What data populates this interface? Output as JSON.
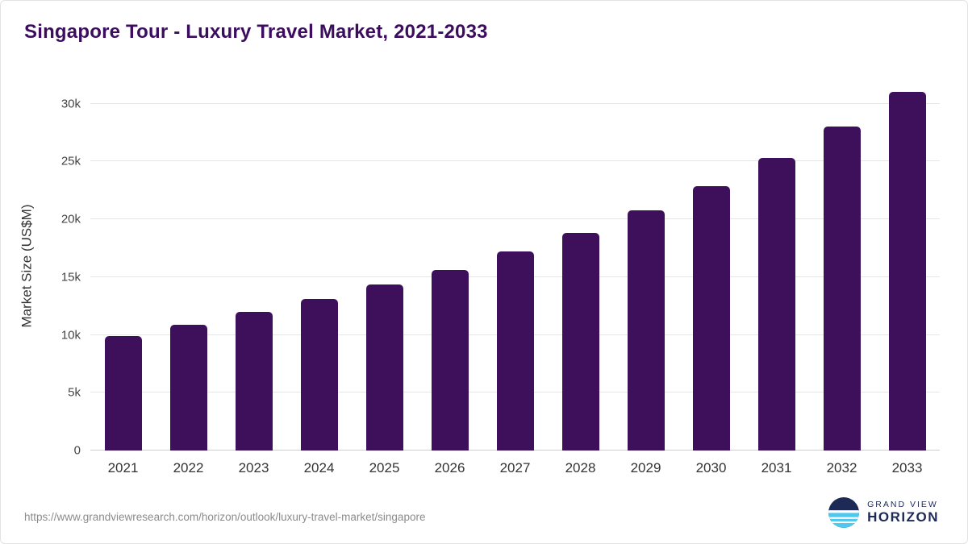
{
  "title": "Singapore Tour - Luxury Travel Market, 2021-2033",
  "footer": {
    "source_url": "https://www.grandviewresearch.com/horizon/outlook/luxury-travel-market/singapore",
    "brand_line1": "GRAND VIEW",
    "brand_line2": "HORIZON"
  },
  "colors": {
    "bar": "#3e105c",
    "title": "#3c0d5e",
    "grid": "#e6e6e6",
    "axis_line": "#cfcfcf",
    "axis_text": "#333333",
    "footer_text": "#8b8b8b",
    "brand_navy": "#1d2a56",
    "brand_blue": "#4cc9ee"
  },
  "chart_data": {
    "type": "bar",
    "title": "Singapore Tour - Luxury Travel Market, 2021-2033",
    "categories": [
      "2021",
      "2022",
      "2023",
      "2024",
      "2025",
      "2026",
      "2027",
      "2028",
      "2029",
      "2030",
      "2031",
      "2032",
      "2033"
    ],
    "values": [
      9900,
      10850,
      12000,
      13100,
      14350,
      15650,
      17200,
      18800,
      20800,
      22900,
      25300,
      28000,
      31000
    ],
    "xlabel": "",
    "ylabel": "Market Size (US$M)",
    "ylim": [
      0,
      32000
    ],
    "yticks": [
      0,
      5000,
      10000,
      15000,
      20000,
      25000,
      30000
    ],
    "ytick_labels": [
      "0",
      "5k",
      "10k",
      "15k",
      "20k",
      "25k",
      "30k"
    ],
    "grid": "horizontal",
    "legend": "none"
  }
}
